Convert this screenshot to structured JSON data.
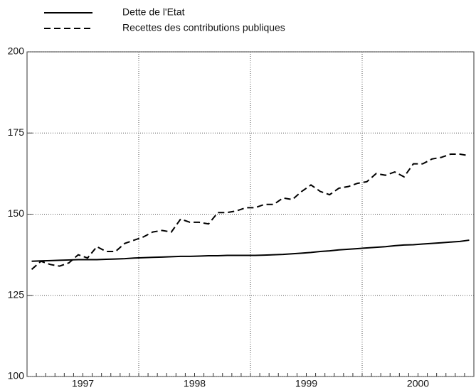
{
  "chart_data": {
    "type": "line",
    "categories": [
      null,
      null,
      null,
      null,
      null,
      null,
      "1997",
      null,
      null,
      null,
      null,
      null,
      null,
      null,
      null,
      null,
      null,
      null,
      "1998",
      null,
      null,
      null,
      null,
      null,
      null,
      null,
      null,
      null,
      null,
      null,
      "1999",
      null,
      null,
      null,
      null,
      null,
      null,
      null,
      null,
      null,
      null,
      null,
      "2000",
      null,
      null,
      null,
      null,
      null
    ],
    "series": [
      {
        "name": "Dette de l'Etat",
        "color": "#000000",
        "dash": false,
        "values": [
          135.5,
          135.6,
          135.7,
          135.8,
          135.9,
          136,
          136,
          136,
          136.1,
          136.2,
          136.3,
          136.5,
          136.6,
          136.7,
          136.8,
          136.9,
          137,
          137,
          137.1,
          137.2,
          137.2,
          137.3,
          137.3,
          137.3,
          137.3,
          137.4,
          137.5,
          137.6,
          137.8,
          138,
          138.2,
          138.5,
          138.7,
          139,
          139.2,
          139.4,
          139.6,
          139.8,
          140,
          140.3,
          140.5,
          140.6,
          140.8,
          141,
          141.2,
          141.4,
          141.6,
          142
        ]
      },
      {
        "name": "Recettes des contributions publiques",
        "color": "#000000",
        "dash": true,
        "values": [
          133,
          135.5,
          134.5,
          134,
          135,
          137.5,
          136.5,
          140,
          138.5,
          138.5,
          141,
          142,
          143,
          144.5,
          145,
          144.5,
          148.5,
          147.5,
          147.5,
          147,
          150.5,
          150.5,
          151,
          152,
          152,
          153,
          153,
          155,
          154.5,
          157,
          159,
          157,
          156,
          158,
          158.5,
          159.5,
          160,
          162.5,
          162,
          163,
          161.5,
          165.5,
          165.5,
          167,
          167.5,
          168.5,
          168.5,
          168
        ]
      }
    ],
    "ylim": [
      100,
      200
    ],
    "yticks": [
      100,
      125,
      150,
      175,
      200
    ],
    "grid": true
  }
}
